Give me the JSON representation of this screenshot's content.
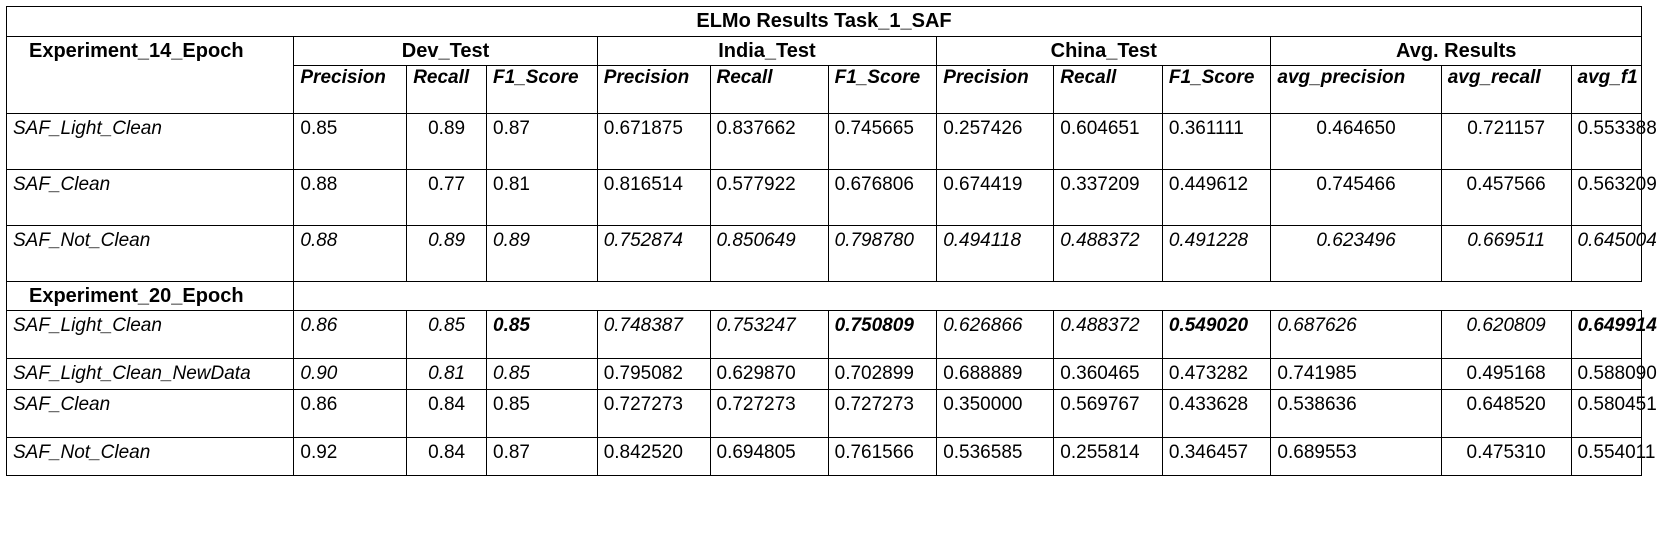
{
  "title": "ELMo Results Task_1_SAF",
  "experiment_14": {
    "label": "Experiment_14_Epoch",
    "groups": [
      "Dev_Test",
      "India_Test",
      "China_Test",
      "Avg. Results"
    ],
    "subheaders": [
      "Precision",
      "Recall",
      "F1_Score",
      "Precision",
      "Recall",
      "F1_Score",
      "Precision",
      "Recall",
      "F1_Score",
      "avg_precision",
      "avg_recall",
      "avg_f1"
    ],
    "rows": [
      {
        "name": "SAF_Light_Clean",
        "values": [
          "0.85",
          "0.89",
          "0.87",
          "0.671875",
          "0.837662",
          "0.745665",
          "0.257426",
          "0.604651",
          "0.361111",
          "0.464650",
          "0.721157",
          "0.553388"
        ]
      },
      {
        "name": "SAF_Clean",
        "values": [
          "0.88",
          "0.77",
          "0.81",
          "0.816514",
          "0.577922",
          "0.676806",
          "0.674419",
          "0.337209",
          "0.449612",
          "0.745466",
          "0.457566",
          "0.563209"
        ]
      },
      {
        "name": "SAF_Not_Clean",
        "values": [
          "0.88",
          "0.89",
          "0.89",
          "0.752874",
          "0.850649",
          "0.798780",
          "0.494118",
          "0.488372",
          "0.491228",
          "0.623496",
          "0.669511",
          "0.645004"
        ]
      }
    ]
  },
  "experiment_20": {
    "label": "Experiment_20_Epoch",
    "rows": [
      {
        "name": "SAF_Light_Clean",
        "values": [
          "0.86",
          "0.85",
          "0.85",
          "0.748387",
          "0.753247",
          "0.750809",
          "0.626866",
          "0.488372",
          "0.549020",
          "0.687626",
          "0.620809",
          "0.649914"
        ]
      },
      {
        "name": "SAF_Light_Clean_NewData",
        "values": [
          "0.90",
          "0.81",
          "0.85",
          "0.795082",
          "0.629870",
          "0.702899",
          "0.688889",
          "0.360465",
          "0.473282",
          "0.741985",
          "0.495168",
          "0.588090"
        ]
      },
      {
        "name": "SAF_Clean",
        "values": [
          "0.86",
          "0.84",
          "0.85",
          "0.727273",
          "0.727273",
          "0.727273",
          "0.350000",
          "0.569767",
          "0.433628",
          "0.538636",
          "0.648520",
          "0.580451"
        ]
      },
      {
        "name": "SAF_Not_Clean",
        "values": [
          "0.92",
          "0.84",
          "0.87",
          "0.842520",
          "0.694805",
          "0.761566",
          "0.536585",
          "0.255814",
          "0.346457",
          "0.689553",
          "0.475310",
          "0.554011"
        ]
      }
    ]
  }
}
